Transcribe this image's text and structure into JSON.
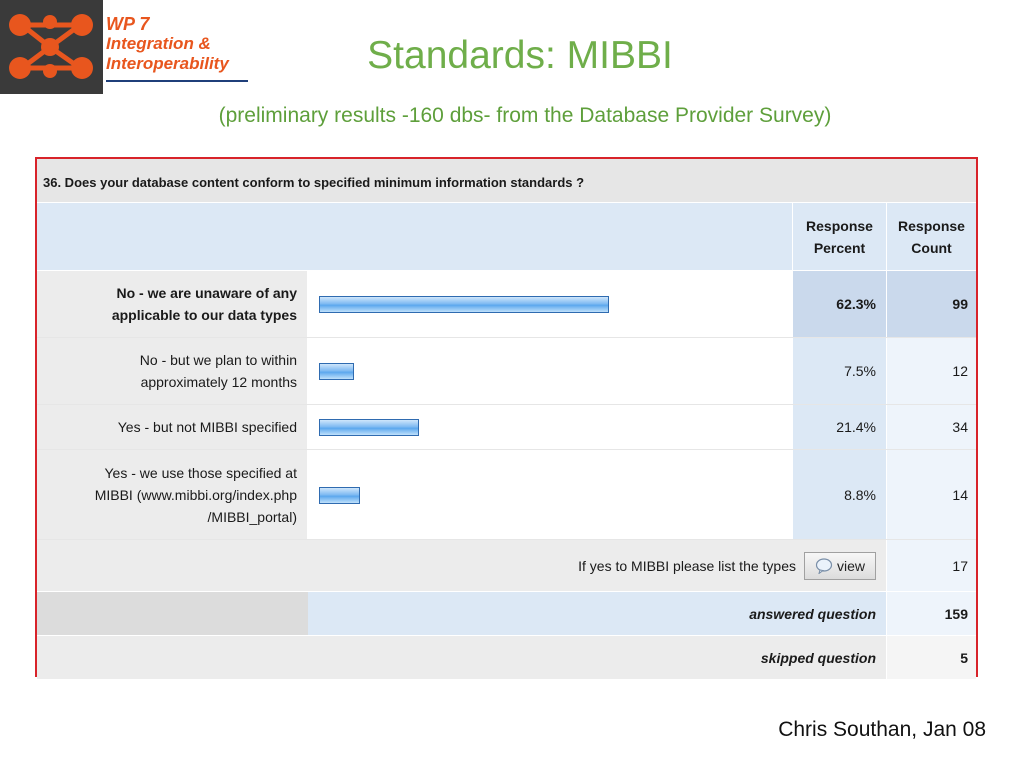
{
  "logo": {
    "line1": "WP 7",
    "line2": "Integration &",
    "line3": "Interoperability",
    "icon": "network-nodes-icon",
    "color": "#e8561e"
  },
  "title": "Standards: MIBBI",
  "subtitle": "(preliminary results -160 dbs- from the Database Provider Survey)",
  "survey": {
    "question": "36. Does your database content conform to specified minimum information standards ?",
    "headers": {
      "percent_1": "Response",
      "percent_2": "Percent",
      "count_1": "Response",
      "count_2": "Count"
    },
    "answers": [
      {
        "label_1": "No - we are unaware of any",
        "label_2": "applicable to our data types",
        "label_3": "",
        "percent": "62.3%",
        "percent_value": 62.3,
        "count": "99"
      },
      {
        "label_1": "No - but we plan to within",
        "label_2": "approximately 12 months",
        "label_3": "",
        "percent": "7.5%",
        "percent_value": 7.5,
        "count": "12"
      },
      {
        "label_1": "Yes - but not MIBBI specified",
        "label_2": "",
        "label_3": "",
        "percent": "21.4%",
        "percent_value": 21.4,
        "count": "34"
      },
      {
        "label_1": "Yes - we use those specified at",
        "label_2": "MIBBI (www.mibbi.org/index.php",
        "label_3": "/MIBBI_portal)",
        "percent": "8.8%",
        "percent_value": 8.8,
        "count": "14"
      }
    ],
    "other": {
      "label": "If yes to MIBBI please list the types",
      "button": "view",
      "count": "17"
    },
    "answered": {
      "label": "answered question",
      "count": "159"
    },
    "skipped": {
      "label": "skipped question",
      "count": "5"
    },
    "bar_color": "#5da8ee",
    "border_color": "#d8232a"
  },
  "footer": "Chris Southan, Jan 08"
}
